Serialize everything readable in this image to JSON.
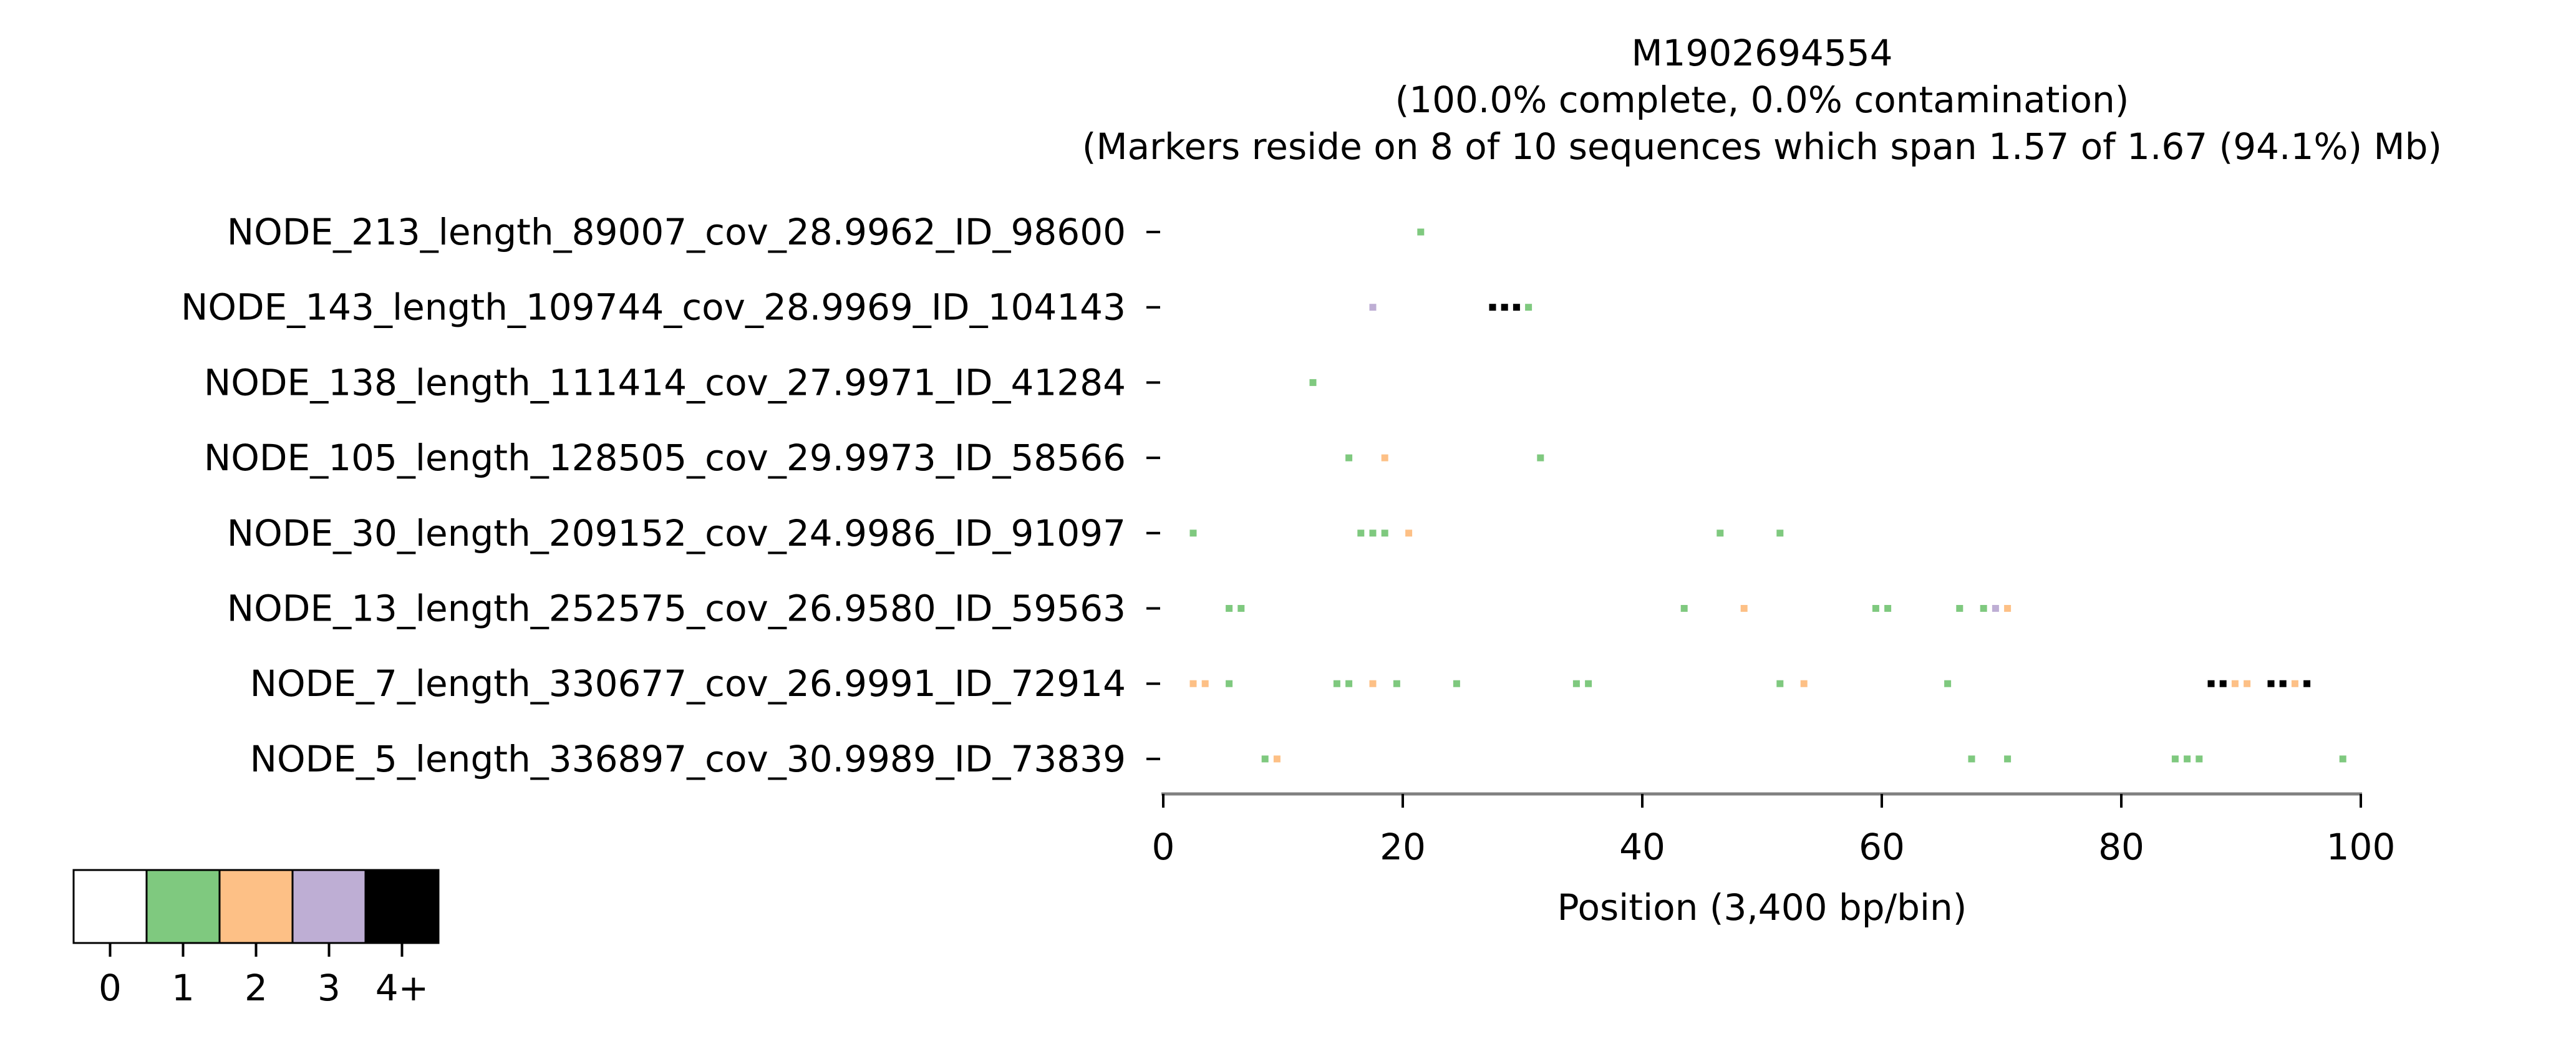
{
  "chart_data": {
    "type": "heatmap",
    "title_lines": [
      "M1902694554",
      "(100.0% complete, 0.0% contamination)",
      "(Markers reside on 8 of 10 sequences which span 1.57 of 1.67 (94.1%) Mb)"
    ],
    "xlabel": "Position (3,400 bp/bin)",
    "xlim": [
      0,
      100
    ],
    "xticks": [
      0,
      20,
      40,
      60,
      80,
      100
    ],
    "sequences": [
      "NODE_213_length_89007_cov_28.9962_ID_98600",
      "NODE_143_length_109744_cov_28.9969_ID_104143",
      "NODE_138_length_111414_cov_27.9971_ID_41284",
      "NODE_105_length_128505_cov_29.9973_ID_58566",
      "NODE_30_length_209152_cov_24.9986_ID_91097",
      "NODE_13_length_252575_cov_26.9580_ID_59563",
      "NODE_7_length_330677_cov_26.9991_ID_72914",
      "NODE_5_length_336897_cov_30.9989_ID_73839"
    ],
    "cells": [
      {
        "seq": 0,
        "bins": [
          [
            21,
            1
          ]
        ]
      },
      {
        "seq": 1,
        "bins": [
          [
            17,
            3
          ],
          [
            27,
            4
          ],
          [
            28,
            4
          ],
          [
            29,
            4
          ],
          [
            30,
            1
          ]
        ]
      },
      {
        "seq": 2,
        "bins": [
          [
            12,
            1
          ]
        ]
      },
      {
        "seq": 3,
        "bins": [
          [
            15,
            1
          ],
          [
            18,
            2
          ],
          [
            31,
            1
          ]
        ]
      },
      {
        "seq": 4,
        "bins": [
          [
            2,
            1
          ],
          [
            16,
            1
          ],
          [
            17,
            1
          ],
          [
            18,
            1
          ],
          [
            20,
            2
          ],
          [
            46,
            1
          ],
          [
            51,
            1
          ]
        ]
      },
      {
        "seq": 5,
        "bins": [
          [
            5,
            1
          ],
          [
            6,
            1
          ],
          [
            43,
            1
          ],
          [
            48,
            2
          ],
          [
            59,
            1
          ],
          [
            60,
            1
          ],
          [
            66,
            1
          ],
          [
            68,
            1
          ],
          [
            69,
            3
          ],
          [
            70,
            2
          ]
        ]
      },
      {
        "seq": 6,
        "bins": [
          [
            2,
            2
          ],
          [
            3,
            2
          ],
          [
            5,
            1
          ],
          [
            14,
            1
          ],
          [
            15,
            1
          ],
          [
            17,
            2
          ],
          [
            19,
            1
          ],
          [
            24,
            1
          ],
          [
            34,
            1
          ],
          [
            35,
            1
          ],
          [
            51,
            1
          ],
          [
            53,
            2
          ],
          [
            65,
            1
          ],
          [
            87,
            4
          ],
          [
            88,
            4
          ],
          [
            89,
            2
          ],
          [
            90,
            2
          ],
          [
            92,
            4
          ],
          [
            93,
            4
          ],
          [
            94,
            2
          ],
          [
            95,
            4
          ]
        ]
      },
      {
        "seq": 7,
        "bins": [
          [
            8,
            1
          ],
          [
            9,
            2
          ],
          [
            67,
            1
          ],
          [
            70,
            1
          ],
          [
            84,
            1
          ],
          [
            85,
            1
          ],
          [
            86,
            1
          ],
          [
            98,
            1
          ]
        ]
      }
    ],
    "legend": {
      "levels": [
        "0",
        "1",
        "2",
        "3",
        "4+"
      ],
      "colors": [
        "#ffffff",
        "#7fc97f",
        "#fdc086",
        "#beaed4",
        "#000000"
      ]
    }
  }
}
